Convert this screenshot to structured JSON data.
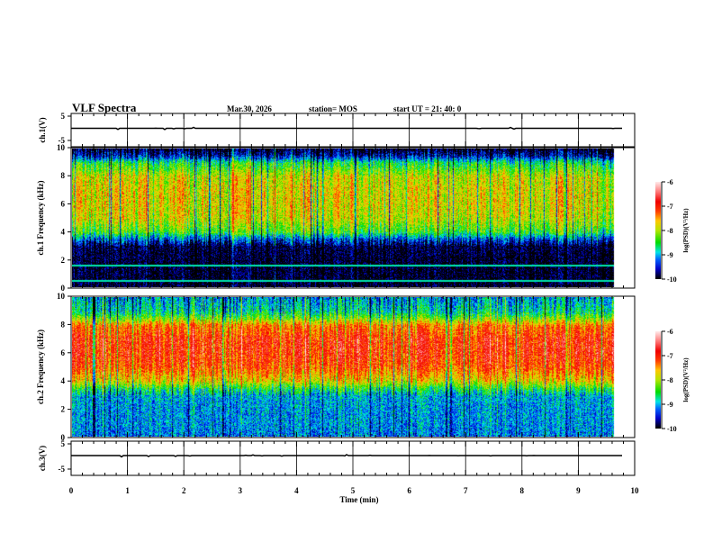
{
  "header": {
    "title": "VLF Spectra",
    "date": "Mar.30, 2026",
    "station": "station= MOS",
    "start": "start UT =   21: 40: 0"
  },
  "chart_data": [
    {
      "type": "line",
      "name": "ch1-waveform",
      "ylabel": "ch.1(V)",
      "ylim": [
        -5,
        5
      ],
      "yticks": [
        "5",
        "-5"
      ],
      "xlim": [
        0,
        10
      ],
      "approx_level": 0
    },
    {
      "type": "heatmap",
      "name": "ch1-spectrogram",
      "ylabel": "ch.1 Frequency (kHz)",
      "ylim": [
        0,
        10
      ],
      "yticks": [
        "0",
        "2",
        "4",
        "6",
        "8",
        "10"
      ],
      "xlim": [
        0,
        10
      ],
      "data_end_min": 9.8,
      "colorbar": {
        "label": "log(PSD)(V²/Hz)",
        "range": [
          -10,
          -6
        ],
        "ticks": [
          "-6",
          "-7",
          "-8",
          "-9",
          "-10"
        ]
      },
      "mean_log_psd_profile": {
        "freq_khz": [
          0,
          1,
          2,
          3,
          3.5,
          4,
          5,
          6,
          7,
          8,
          9,
          9.5,
          10
        ],
        "log_psd": [
          -10,
          -10,
          -10,
          -9.9,
          -9.3,
          -8.4,
          -7.9,
          -7.8,
          -7.8,
          -7.9,
          -8.6,
          -9.6,
          -10
        ]
      },
      "narrowband_lines_khz": [
        0.5,
        1.6
      ]
    },
    {
      "type": "heatmap",
      "name": "ch2-spectrogram",
      "ylabel": "ch.2 Frequency (kHz)",
      "ylim": [
        0,
        10
      ],
      "yticks": [
        "0",
        "2",
        "4",
        "6",
        "8",
        "10"
      ],
      "xlim": [
        0,
        10
      ],
      "data_end_min": 9.8,
      "colorbar": {
        "label": "log(PSD)(V²/Hz)",
        "range": [
          -10,
          -6
        ],
        "ticks": [
          "-6",
          "-7",
          "-8",
          "-9",
          "-10"
        ]
      },
      "mean_log_psd_profile": {
        "freq_khz": [
          0,
          1,
          2,
          3,
          3.5,
          4,
          5,
          6,
          7,
          8,
          8.5,
          9,
          10
        ],
        "log_psd": [
          -9.2,
          -9.1,
          -9.1,
          -9.0,
          -8.5,
          -7.8,
          -7.2,
          -7.0,
          -7.0,
          -7.4,
          -8.2,
          -8.8,
          -9.1
        ]
      },
      "narrowband_lines_khz": []
    },
    {
      "type": "line",
      "name": "ch3-waveform",
      "ylabel": "ch.3(V)",
      "ylim": [
        -5,
        5
      ],
      "yticks": [
        "5",
        "-5"
      ],
      "xlim": [
        0,
        10
      ],
      "approx_level": 0
    }
  ],
  "xaxis": {
    "label": "Time (min)",
    "ticks": [
      "0",
      "1",
      "2",
      "3",
      "4",
      "5",
      "6",
      "7",
      "8",
      "9",
      "10"
    ]
  }
}
